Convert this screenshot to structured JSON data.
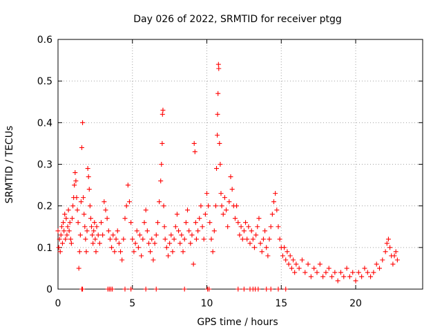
{
  "chart_data": {
    "type": "scatter",
    "title": "Day 026 of 2022, SRMTID for receiver ptgg",
    "xlabel": "GPS time / hours",
    "ylabel": "SRMTID / TECUs",
    "xlim": [
      0,
      24.5
    ],
    "ylim": [
      0,
      0.6
    ],
    "xticks": [
      0,
      5,
      10,
      15,
      20
    ],
    "xtick_labels": [
      "0",
      "5",
      "10",
      "15",
      "20"
    ],
    "yticks": [
      0,
      0.1,
      0.2,
      0.3,
      0.4,
      0.5,
      0.6
    ],
    "ytick_labels": [
      "0",
      "0.1",
      "0.2",
      "0.3",
      "0.4",
      "0.5",
      "0.6"
    ],
    "grid": true,
    "marker": "plus",
    "color": "#ff0000",
    "series": [
      {
        "name": "SRMTID",
        "points": [
          [
            0.0,
            0.14
          ],
          [
            0.05,
            0.1
          ],
          [
            0.1,
            0.12
          ],
          [
            0.15,
            0.09
          ],
          [
            0.2,
            0.13
          ],
          [
            0.25,
            0.15
          ],
          [
            0.3,
            0.11
          ],
          [
            0.35,
            0.16
          ],
          [
            0.4,
            0.14
          ],
          [
            0.45,
            0.18
          ],
          [
            0.5,
            0.12
          ],
          [
            0.55,
            0.17
          ],
          [
            0.6,
            0.13
          ],
          [
            0.65,
            0.15
          ],
          [
            0.7,
            0.19
          ],
          [
            0.75,
            0.14
          ],
          [
            0.8,
            0.16
          ],
          [
            0.85,
            0.12
          ],
          [
            0.9,
            0.11
          ],
          [
            0.95,
            0.17
          ],
          [
            1.0,
            0.2
          ],
          [
            1.05,
            0.22
          ],
          [
            1.1,
            0.25
          ],
          [
            1.15,
            0.28
          ],
          [
            1.2,
            0.26
          ],
          [
            1.25,
            0.22
          ],
          [
            1.3,
            0.19
          ],
          [
            1.35,
            0.16
          ],
          [
            1.4,
            0.05
          ],
          [
            1.45,
            0.09
          ],
          [
            1.5,
            0.13
          ],
          [
            1.55,
            0.21
          ],
          [
            1.6,
            0.34
          ],
          [
            1.65,
            0.4
          ],
          [
            1.7,
            0.22
          ],
          [
            1.75,
            0.18
          ],
          [
            1.8,
            0.15
          ],
          [
            1.85,
            0.12
          ],
          [
            1.9,
            0.09
          ],
          [
            1.95,
            0.14
          ],
          [
            2.0,
            0.29
          ],
          [
            2.05,
            0.27
          ],
          [
            2.1,
            0.24
          ],
          [
            2.15,
            0.2
          ],
          [
            2.2,
            0.17
          ],
          [
            2.25,
            0.15
          ],
          [
            2.3,
            0.13
          ],
          [
            2.35,
            0.11
          ],
          [
            2.4,
            0.14
          ],
          [
            2.45,
            0.16
          ],
          [
            2.5,
            0.12
          ],
          [
            2.55,
            0.09
          ],
          [
            2.6,
            0.15
          ],
          [
            2.7,
            0.13
          ],
          [
            2.8,
            0.11
          ],
          [
            2.9,
            0.16
          ],
          [
            3.0,
            0.13
          ],
          [
            3.1,
            0.21
          ],
          [
            3.2,
            0.19
          ],
          [
            3.3,
            0.17
          ],
          [
            3.4,
            0.14
          ],
          [
            3.5,
            0.12
          ],
          [
            3.6,
            0.1
          ],
          [
            3.7,
            0.13
          ],
          [
            3.8,
            0.09
          ],
          [
            3.9,
            0.12
          ],
          [
            4.0,
            0.14
          ],
          [
            4.1,
            0.11
          ],
          [
            4.2,
            0.09
          ],
          [
            4.3,
            0.07
          ],
          [
            4.4,
            0.12
          ],
          [
            4.5,
            0.17
          ],
          [
            4.6,
            0.2
          ],
          [
            4.7,
            0.25
          ],
          [
            4.8,
            0.21
          ],
          [
            4.9,
            0.16
          ],
          [
            5.0,
            0.12
          ],
          [
            5.1,
            0.09
          ],
          [
            5.2,
            0.11
          ],
          [
            5.3,
            0.14
          ],
          [
            5.4,
            0.1
          ],
          [
            5.5,
            0.13
          ],
          [
            5.6,
            0.08
          ],
          [
            5.7,
            0.12
          ],
          [
            5.8,
            0.16
          ],
          [
            5.9,
            0.19
          ],
          [
            6.0,
            0.14
          ],
          [
            6.1,
            0.11
          ],
          [
            6.2,
            0.09
          ],
          [
            6.3,
            0.12
          ],
          [
            6.4,
            0.07
          ],
          [
            6.5,
            0.11
          ],
          [
            6.6,
            0.13
          ],
          [
            6.7,
            0.16
          ],
          [
            6.8,
            0.21
          ],
          [
            6.9,
            0.26
          ],
          [
            6.95,
            0.3
          ],
          [
            7.0,
            0.35
          ],
          [
            7.02,
            0.42
          ],
          [
            7.05,
            0.43
          ],
          [
            7.1,
            0.2
          ],
          [
            7.15,
            0.15
          ],
          [
            7.2,
            0.12
          ],
          [
            7.3,
            0.1
          ],
          [
            7.4,
            0.08
          ],
          [
            7.5,
            0.11
          ],
          [
            7.6,
            0.13
          ],
          [
            7.7,
            0.09
          ],
          [
            7.8,
            0.12
          ],
          [
            7.9,
            0.15
          ],
          [
            8.0,
            0.18
          ],
          [
            8.1,
            0.14
          ],
          [
            8.2,
            0.11
          ],
          [
            8.3,
            0.13
          ],
          [
            8.4,
            0.09
          ],
          [
            8.5,
            0.12
          ],
          [
            8.6,
            0.16
          ],
          [
            8.7,
            0.19
          ],
          [
            8.8,
            0.14
          ],
          [
            8.9,
            0.11
          ],
          [
            9.0,
            0.13
          ],
          [
            9.1,
            0.06
          ],
          [
            9.15,
            0.35
          ],
          [
            9.2,
            0.33
          ],
          [
            9.25,
            0.16
          ],
          [
            9.3,
            0.12
          ],
          [
            9.4,
            0.14
          ],
          [
            9.5,
            0.17
          ],
          [
            9.6,
            0.2
          ],
          [
            9.7,
            0.15
          ],
          [
            9.8,
            0.12
          ],
          [
            9.9,
            0.18
          ],
          [
            10.0,
            0.23
          ],
          [
            10.1,
            0.2
          ],
          [
            10.2,
            0.16
          ],
          [
            10.3,
            0.12
          ],
          [
            10.4,
            0.09
          ],
          [
            10.5,
            0.14
          ],
          [
            10.6,
            0.2
          ],
          [
            10.65,
            0.29
          ],
          [
            10.7,
            0.37
          ],
          [
            10.72,
            0.42
          ],
          [
            10.75,
            0.47
          ],
          [
            10.78,
            0.54
          ],
          [
            10.8,
            0.53
          ],
          [
            10.85,
            0.35
          ],
          [
            10.9,
            0.3
          ],
          [
            10.95,
            0.23
          ],
          [
            11.0,
            0.2
          ],
          [
            11.1,
            0.18
          ],
          [
            11.2,
            0.22
          ],
          [
            11.3,
            0.19
          ],
          [
            11.4,
            0.15
          ],
          [
            11.5,
            0.21
          ],
          [
            11.6,
            0.27
          ],
          [
            11.7,
            0.24
          ],
          [
            11.8,
            0.2
          ],
          [
            11.9,
            0.17
          ],
          [
            12.0,
            0.2
          ],
          [
            12.1,
            0.16
          ],
          [
            12.2,
            0.13
          ],
          [
            12.3,
            0.15
          ],
          [
            12.4,
            0.12
          ],
          [
            12.5,
            0.14
          ],
          [
            12.6,
            0.16
          ],
          [
            12.7,
            0.12
          ],
          [
            12.8,
            0.15
          ],
          [
            12.9,
            0.11
          ],
          [
            13.0,
            0.14
          ],
          [
            13.1,
            0.12
          ],
          [
            13.2,
            0.1
          ],
          [
            13.3,
            0.13
          ],
          [
            13.4,
            0.15
          ],
          [
            13.5,
            0.17
          ],
          [
            13.6,
            0.11
          ],
          [
            13.7,
            0.09
          ],
          [
            13.8,
            0.12
          ],
          [
            13.9,
            0.14
          ],
          [
            14.0,
            0.1
          ],
          [
            14.1,
            0.08
          ],
          [
            14.2,
            0.12
          ],
          [
            14.3,
            0.15
          ],
          [
            14.4,
            0.18
          ],
          [
            14.5,
            0.21
          ],
          [
            14.6,
            0.23
          ],
          [
            14.7,
            0.19
          ],
          [
            14.8,
            0.15
          ],
          [
            14.9,
            0.12
          ],
          [
            15.0,
            0.1
          ],
          [
            15.1,
            0.08
          ],
          [
            15.2,
            0.1
          ],
          [
            15.3,
            0.07
          ],
          [
            15.4,
            0.09
          ],
          [
            15.5,
            0.06
          ],
          [
            15.6,
            0.08
          ],
          [
            15.7,
            0.05
          ],
          [
            15.8,
            0.07
          ],
          [
            15.9,
            0.04
          ],
          [
            16.0,
            0.06
          ],
          [
            16.2,
            0.05
          ],
          [
            16.4,
            0.07
          ],
          [
            16.6,
            0.04
          ],
          [
            16.8,
            0.06
          ],
          [
            17.0,
            0.03
          ],
          [
            17.2,
            0.05
          ],
          [
            17.4,
            0.04
          ],
          [
            17.6,
            0.06
          ],
          [
            17.8,
            0.03
          ],
          [
            18.0,
            0.04
          ],
          [
            18.2,
            0.05
          ],
          [
            18.4,
            0.03
          ],
          [
            18.6,
            0.04
          ],
          [
            18.8,
            0.02
          ],
          [
            19.0,
            0.04
          ],
          [
            19.2,
            0.03
          ],
          [
            19.4,
            0.05
          ],
          [
            19.6,
            0.03
          ],
          [
            19.8,
            0.04
          ],
          [
            20.0,
            0.02
          ],
          [
            20.2,
            0.04
          ],
          [
            20.4,
            0.03
          ],
          [
            20.6,
            0.05
          ],
          [
            20.8,
            0.04
          ],
          [
            21.0,
            0.03
          ],
          [
            21.2,
            0.04
          ],
          [
            21.4,
            0.06
          ],
          [
            21.6,
            0.05
          ],
          [
            21.8,
            0.07
          ],
          [
            22.0,
            0.09
          ],
          [
            22.1,
            0.11
          ],
          [
            22.2,
            0.12
          ],
          [
            22.3,
            0.1
          ],
          [
            22.4,
            0.08
          ],
          [
            22.5,
            0.06
          ],
          [
            22.6,
            0.08
          ],
          [
            22.7,
            0.09
          ],
          [
            22.8,
            0.07
          ]
        ],
        "zero_points": [
          1.6,
          1.65,
          3.35,
          3.45,
          3.55,
          3.65,
          4.5,
          4.9,
          5.9,
          6.6,
          8.5,
          10.05,
          10.15,
          12.1,
          12.5,
          12.9,
          13.1,
          13.25,
          13.45,
          14.0,
          14.3,
          14.8,
          15.3
        ]
      }
    ]
  }
}
